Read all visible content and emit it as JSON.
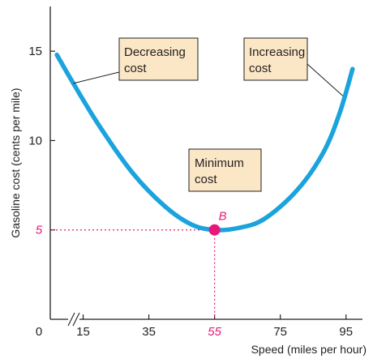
{
  "chart_data": {
    "type": "line",
    "xlabel": "Speed (miles per hour)",
    "ylabel": "Gasoline cost (cents per mile)",
    "x_origin_label": "0",
    "x_ticks": [
      15,
      35,
      55,
      75,
      95
    ],
    "y_ticks": [
      5,
      10,
      15
    ],
    "xlim": [
      5,
      100
    ],
    "ylim": [
      0,
      17.5
    ],
    "axis_break": true,
    "grid": false,
    "series": [
      {
        "color": "#1aa3dc",
        "x": [
          7,
          12,
          20,
          30,
          40,
          48,
          55,
          62,
          70,
          80,
          88,
          93,
          97
        ],
        "y": [
          14.8,
          13.2,
          10.8,
          8.2,
          6.3,
          5.3,
          5.0,
          5.1,
          5.6,
          7.2,
          9.3,
          11.5,
          14.0
        ]
      }
    ],
    "highlight": {
      "point_label": "B",
      "x": 55,
      "y": 5,
      "x_label": "55",
      "y_label": "5",
      "color": "#e6197a"
    },
    "annotations": [
      {
        "id": "decreasing",
        "text_lines": [
          "Decreasing",
          "cost"
        ],
        "anchor_x": 12,
        "anchor_y": 13.2
      },
      {
        "id": "increasing",
        "text_lines": [
          "Increasing",
          "cost"
        ],
        "anchor_x": 94,
        "anchor_y": 12.5
      },
      {
        "id": "minimum",
        "text_lines": [
          "Minimum",
          "cost"
        ],
        "anchor_x": null,
        "anchor_y": null
      }
    ],
    "annotation_fill": "#fbe7c6"
  }
}
